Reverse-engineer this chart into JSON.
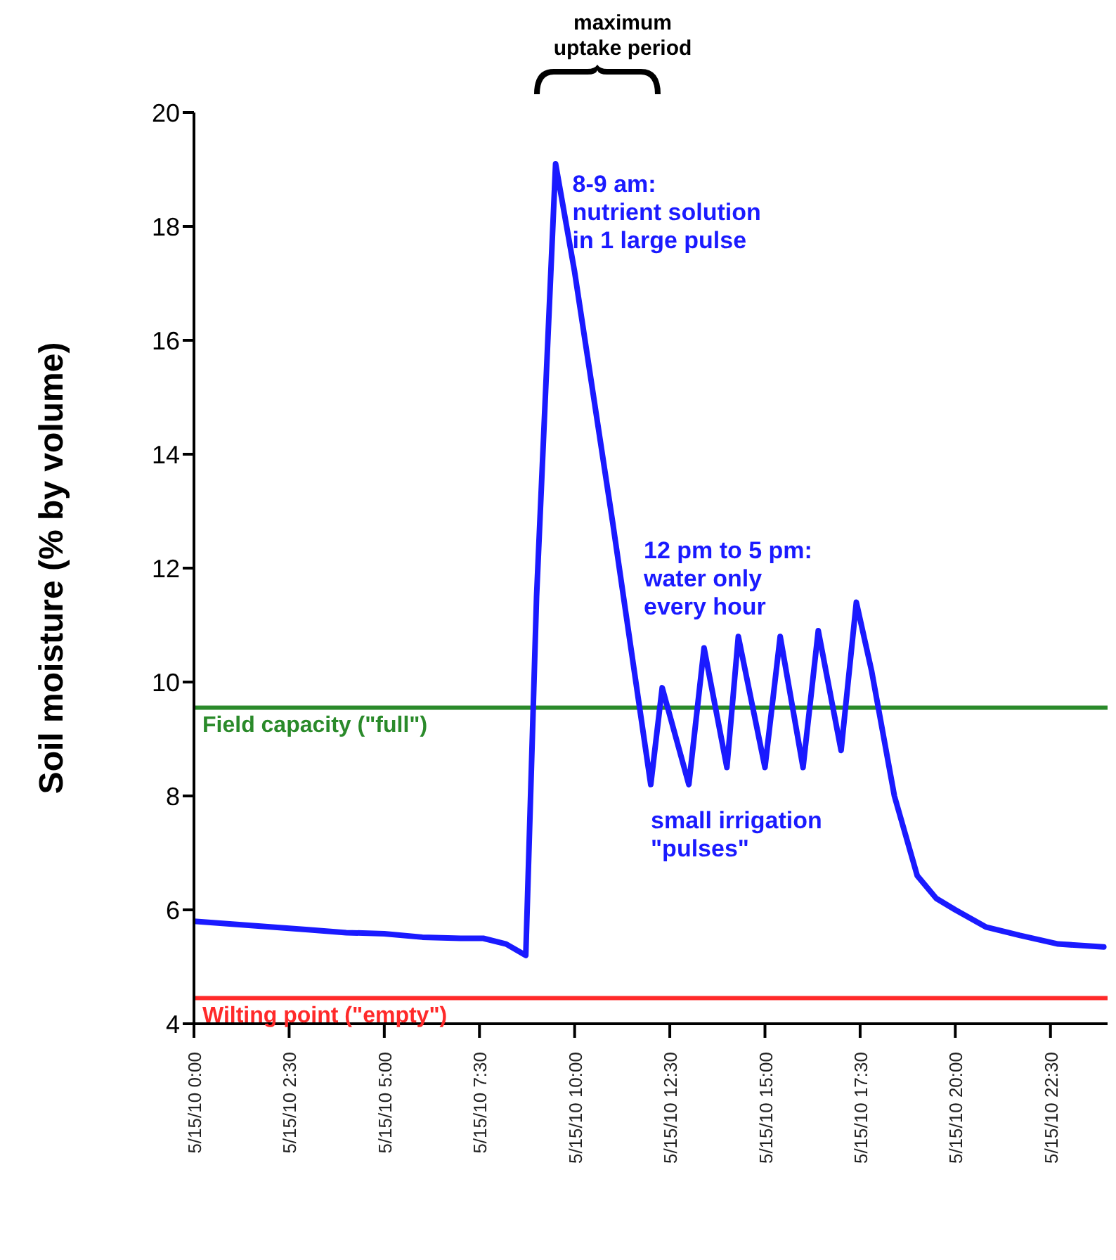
{
  "chart_data": {
    "type": "line",
    "ylabel": "Soil moisture (% by volume)",
    "x": [
      "--05-15T00:00",
      "--05-15T01:00",
      "--05-15T02:00",
      "--05-15T03:00",
      "--05-15T04:00",
      "--05-15T05:00",
      "--05-15T06:00",
      "--05-15T07:00",
      "--05-15T07:36",
      "--05-15T08:12",
      "--05-15T08:43",
      "--05-15T09:00",
      "--05-15T09:30",
      "--05-15T10:00",
      "--05-15T11:00",
      "--05-15T12:00",
      "--05-15T12:18",
      "--05-15T13:00",
      "--05-15T13:24",
      "--05-15T14:00",
      "--05-15T14:18",
      "--05-15T15:00",
      "--05-15T15:24",
      "--05-15T16:00",
      "--05-15T16:24",
      "--05-15T17:00",
      "--05-15T17:24",
      "--05-15T17:48",
      "--05-15T18:24",
      "--05-15T19:00",
      "--05-15T19:30",
      "--05-15T20:00",
      "--05-15T20:48",
      "--05-15T21:42",
      "--05-15T22:42",
      "--05-15T23:54"
    ],
    "series": [
      {
        "color": "#1a1aff",
        "values": [
          5.8,
          5.75,
          5.7,
          5.65,
          5.6,
          5.58,
          5.52,
          5.5,
          5.5,
          5.4,
          5.2,
          11.5,
          19.1,
          17.2,
          12.8,
          8.2,
          9.9,
          8.2,
          10.6,
          8.5,
          10.8,
          8.5,
          10.8,
          8.5,
          10.9,
          8.8,
          11.4,
          10.2,
          8.0,
          6.6,
          6.2,
          6.0,
          5.7,
          5.55,
          5.4,
          5.35
        ]
      }
    ],
    "xlim": [
      "--05-15T00:00",
      "--05-16T00:00"
    ],
    "xticks": [
      {
        "value": "--05-15T00:00",
        "label": "5/15/10 0:00"
      },
      {
        "value": "--05-15T02:30",
        "label": "5/15/10 2:30"
      },
      {
        "value": "--05-15T05:00",
        "label": "5/15/10 5:00"
      },
      {
        "value": "--05-15T07:30",
        "label": "5/15/10 7:30"
      },
      {
        "value": "--05-15T10:00",
        "label": "5/15/10 10:00"
      },
      {
        "value": "--05-15T12:30",
        "label": "5/15/10 12:30"
      },
      {
        "value": "--05-15T15:00",
        "label": "5/15/10 15:00"
      },
      {
        "value": "--05-15T17:30",
        "label": "5/15/10 17:30"
      },
      {
        "value": "--05-15T20:00",
        "label": "5/15/10 20:00"
      },
      {
        "value": "--05-15T22:30",
        "label": "5/15/10 22:30"
      }
    ],
    "ylim": [
      4,
      20
    ],
    "yticks": [
      4,
      6,
      8,
      10,
      12,
      14,
      16,
      18,
      20
    ],
    "ref_lines": [
      {
        "axis": "y",
        "value": 9.55,
        "label": "Field capacity (\"full\")",
        "color": "#2a8a2a"
      },
      {
        "axis": "y",
        "value": 4.45,
        "label": "Wilting point (\"empty\")",
        "color": "#ff2a2a"
      }
    ],
    "annotations": [
      "maximum\nuptake period",
      {
        "text": "8-9 am:\nnutrient solution\nin 1 large pulse",
        "x": "--05-15T09:30",
        "y": 19.1
      },
      "12 pm to 5 pm:\nwater only\nevery hour",
      "small irrigation\n\"pulses\""
    ],
    "marker": "none",
    "line_style": "solid"
  }
}
